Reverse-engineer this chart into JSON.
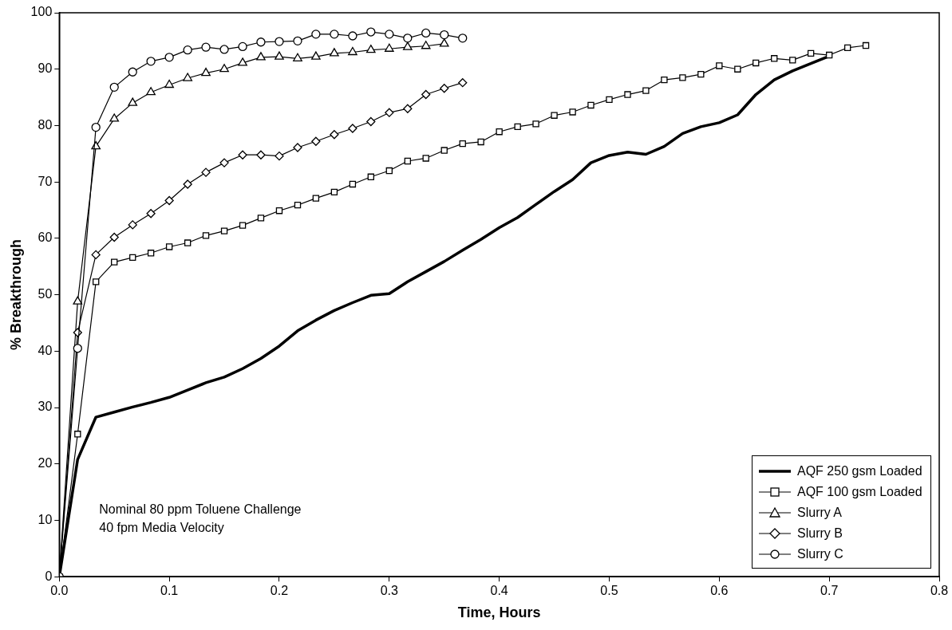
{
  "chart_data": {
    "type": "line",
    "xlabel": "Time, Hours",
    "ylabel": "% Breakthrough",
    "xlim": [
      0,
      0.8
    ],
    "xticks": [
      {
        "value": 0,
        "label": "0.0"
      },
      0.1,
      0.2,
      0.3,
      0.4,
      0.5,
      0.6,
      0.7,
      0.8
    ],
    "ylim": [
      0,
      100
    ],
    "yticks": [
      0,
      10,
      20,
      30,
      40,
      50,
      60,
      70,
      80,
      90,
      100
    ],
    "grid": false,
    "legend": "bottom right",
    "annotations": [
      "Nominal 80 ppm Toluene Challenge\n40 fpm Media Velocity"
    ],
    "series": [
      {
        "name": "AQF 250 gsm Loaded",
        "color": "#000000",
        "marker": "none",
        "x": [
          0,
          0.0167,
          0.0333,
          0.05,
          0.0667,
          0.0833,
          0.1,
          0.1167,
          0.1333,
          0.15,
          0.1667,
          0.1833,
          0.2,
          0.2167,
          0.2333,
          0.25,
          0.2667,
          0.2833,
          0.3,
          0.3167,
          0.3333,
          0.35,
          0.3667,
          0.3833,
          0.4,
          0.4167,
          0.4333,
          0.45,
          0.4667,
          0.4833,
          0.5,
          0.5167,
          0.5333,
          0.55,
          0.5667,
          0.5833,
          0.6,
          0.6167,
          0.6333,
          0.65,
          0.6667,
          0.6833,
          0.7
        ],
        "values": [
          0,
          20.8,
          28.3,
          29.2,
          30.1,
          30.9,
          31.8,
          33.1,
          34.4,
          35.4,
          36.9,
          38.7,
          40.9,
          43.6,
          45.5,
          47.2,
          48.6,
          49.9,
          50.2,
          52.3,
          54.1,
          55.9,
          57.9,
          59.8,
          61.9,
          63.7,
          66.0,
          68.3,
          70.4,
          73.4,
          74.7,
          75.3,
          74.9,
          76.3,
          78.6,
          79.8,
          80.5,
          81.9,
          85.5,
          88.1,
          89.7,
          91.0,
          92.3
        ]
      },
      {
        "name": "AQF 100 gsm Loaded",
        "color": "#000000",
        "marker": "square",
        "x": [
          0,
          0.0167,
          0.0333,
          0.05,
          0.0667,
          0.0833,
          0.1,
          0.1167,
          0.1333,
          0.15,
          0.1667,
          0.1833,
          0.2,
          0.2167,
          0.2333,
          0.25,
          0.2667,
          0.2833,
          0.3,
          0.3167,
          0.3333,
          0.35,
          0.3667,
          0.3833,
          0.4,
          0.4167,
          0.4333,
          0.45,
          0.4667,
          0.4833,
          0.5,
          0.5167,
          0.5333,
          0.55,
          0.5667,
          0.5833,
          0.6,
          0.6167,
          0.6333,
          0.65,
          0.6667,
          0.6833,
          0.7,
          0.7167,
          0.7333
        ],
        "values": [
          0,
          25.3,
          52.3,
          55.8,
          56.6,
          57.4,
          58.5,
          59.2,
          60.5,
          61.3,
          62.3,
          63.6,
          64.9,
          65.9,
          67.1,
          68.2,
          69.6,
          70.9,
          72.0,
          73.7,
          74.2,
          75.6,
          76.8,
          77.1,
          78.9,
          79.8,
          80.3,
          81.8,
          82.4,
          83.6,
          84.6,
          85.5,
          86.2,
          88.1,
          88.5,
          89.1,
          90.6,
          90.0,
          91.1,
          91.9,
          91.6,
          92.8,
          92.5,
          93.8,
          94.2
        ]
      },
      {
        "name": "Slurry A",
        "color": "#000000",
        "marker": "triangle",
        "x": [
          0,
          0.0167,
          0.0333,
          0.05,
          0.0667,
          0.0833,
          0.1,
          0.1167,
          0.1333,
          0.15,
          0.1667,
          0.1833,
          0.2,
          0.2167,
          0.2333,
          0.25,
          0.2667,
          0.2833,
          0.3,
          0.3167,
          0.3333,
          0.35
        ],
        "values": [
          0,
          48.8,
          76.3,
          81.2,
          84.0,
          85.9,
          87.2,
          88.4,
          89.3,
          90.0,
          91.1,
          92.1,
          92.2,
          91.9,
          92.2,
          92.8,
          93.0,
          93.4,
          93.6,
          93.9,
          94.1,
          94.5
        ]
      },
      {
        "name": "Slurry B",
        "color": "#000000",
        "marker": "diamond",
        "x": [
          0,
          0.0167,
          0.0333,
          0.05,
          0.0667,
          0.0833,
          0.1,
          0.1167,
          0.1333,
          0.15,
          0.1667,
          0.1833,
          0.2,
          0.2167,
          0.2333,
          0.25,
          0.2667,
          0.2833,
          0.3,
          0.3167,
          0.3333,
          0.35,
          0.3667
        ],
        "values": [
          0,
          43.3,
          57.1,
          60.2,
          62.4,
          64.4,
          66.7,
          69.6,
          71.7,
          73.4,
          74.8,
          74.8,
          74.6,
          76.1,
          77.2,
          78.4,
          79.5,
          80.7,
          82.3,
          83.0,
          85.5,
          86.6,
          87.6
        ]
      },
      {
        "name": "Slurry C",
        "color": "#000000",
        "marker": "circle",
        "x": [
          0,
          0.0167,
          0.0333,
          0.05,
          0.0667,
          0.0833,
          0.1,
          0.1167,
          0.1333,
          0.15,
          0.1667,
          0.1833,
          0.2,
          0.2167,
          0.2333,
          0.25,
          0.2667,
          0.2833,
          0.3,
          0.3167,
          0.3333,
          0.35,
          0.3667
        ],
        "values": [
          0,
          40.5,
          79.7,
          86.8,
          89.5,
          91.4,
          92.1,
          93.4,
          93.9,
          93.5,
          94.0,
          94.8,
          94.9,
          95.0,
          96.2,
          96.2,
          95.9,
          96.6,
          96.2,
          95.5,
          96.4,
          96.1,
          95.5
        ]
      }
    ]
  }
}
